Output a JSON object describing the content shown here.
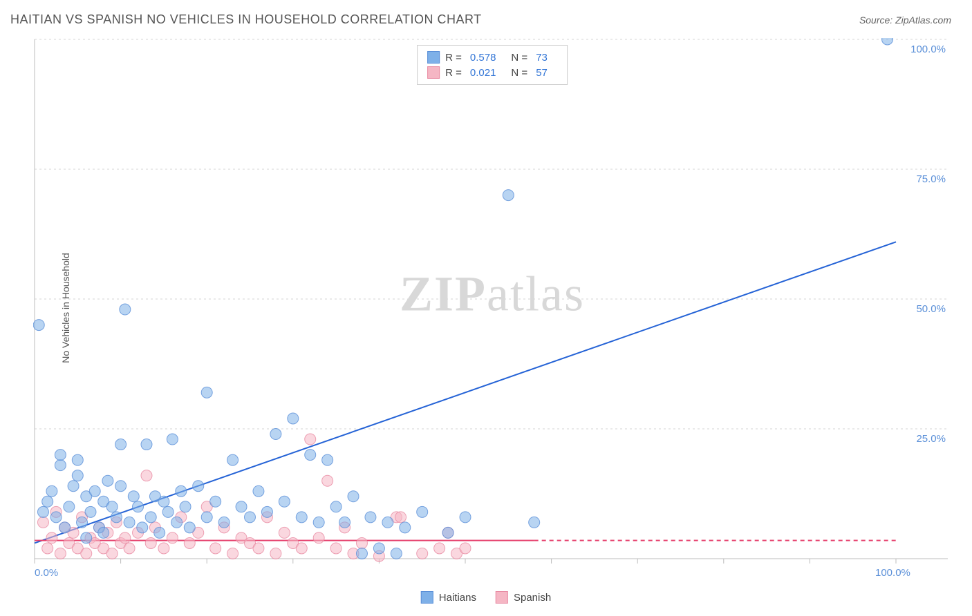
{
  "title": "HAITIAN VS SPANISH NO VEHICLES IN HOUSEHOLD CORRELATION CHART",
  "source_label": "Source: ZipAtlas.com",
  "y_axis_label": "No Vehicles in Household",
  "watermark": {
    "zip": "ZIP",
    "atlas": "atlas"
  },
  "chart": {
    "type": "scatter",
    "background_color": "#ffffff",
    "grid_color": "#d6d6d6",
    "axis_color": "#bcbcbc",
    "xlim": [
      0,
      100
    ],
    "ylim": [
      0,
      100
    ],
    "x_tick_step": 10,
    "y_tick_step": 25,
    "x_tick_labels": {
      "0": "0.0%",
      "100": "100.0%"
    },
    "y_tick_labels": {
      "25": "25.0%",
      "50": "50.0%",
      "75": "75.0%",
      "100": "100.0%"
    },
    "tick_label_color": "#5a8fd8",
    "tick_label_fontsize": 15,
    "marker_radius": 8,
    "marker_opacity": 0.55,
    "line_width": 2,
    "series": [
      {
        "name": "Haitians",
        "color": "#7eb0e8",
        "stroke": "#5a8fd8",
        "line_color": "#2563d6",
        "r_value": "0.578",
        "n_value": "73",
        "trend": {
          "x1": 0,
          "y1": 3,
          "x2": 100,
          "y2": 61,
          "dash_from_x": 100
        },
        "points": [
          [
            0.5,
            45
          ],
          [
            1,
            9
          ],
          [
            1.5,
            11
          ],
          [
            2,
            13
          ],
          [
            2.5,
            8
          ],
          [
            3,
            18
          ],
          [
            3,
            20
          ],
          [
            3.5,
            6
          ],
          [
            4,
            10
          ],
          [
            4.5,
            14
          ],
          [
            5,
            16
          ],
          [
            5,
            19
          ],
          [
            5.5,
            7
          ],
          [
            6,
            12
          ],
          [
            6,
            4
          ],
          [
            6.5,
            9
          ],
          [
            7,
            13
          ],
          [
            7.5,
            6
          ],
          [
            8,
            11
          ],
          [
            8,
            5
          ],
          [
            8.5,
            15
          ],
          [
            9,
            10
          ],
          [
            9.5,
            8
          ],
          [
            10,
            14
          ],
          [
            10,
            22
          ],
          [
            10.5,
            48
          ],
          [
            11,
            7
          ],
          [
            11.5,
            12
          ],
          [
            12,
            10
          ],
          [
            12.5,
            6
          ],
          [
            13,
            22
          ],
          [
            13.5,
            8
          ],
          [
            14,
            12
          ],
          [
            14.5,
            5
          ],
          [
            15,
            11
          ],
          [
            15.5,
            9
          ],
          [
            16,
            23
          ],
          [
            16.5,
            7
          ],
          [
            17,
            13
          ],
          [
            17.5,
            10
          ],
          [
            18,
            6
          ],
          [
            19,
            14
          ],
          [
            20,
            32
          ],
          [
            20,
            8
          ],
          [
            21,
            11
          ],
          [
            22,
            7
          ],
          [
            23,
            19
          ],
          [
            24,
            10
          ],
          [
            25,
            8
          ],
          [
            26,
            13
          ],
          [
            27,
            9
          ],
          [
            28,
            24
          ],
          [
            29,
            11
          ],
          [
            30,
            27
          ],
          [
            31,
            8
          ],
          [
            32,
            20
          ],
          [
            33,
            7
          ],
          [
            34,
            19
          ],
          [
            35,
            10
          ],
          [
            36,
            7
          ],
          [
            37,
            12
          ],
          [
            38,
            1
          ],
          [
            39,
            8
          ],
          [
            40,
            2
          ],
          [
            41,
            7
          ],
          [
            42,
            1
          ],
          [
            43,
            6
          ],
          [
            45,
            9
          ],
          [
            48,
            5
          ],
          [
            50,
            8
          ],
          [
            55,
            70
          ],
          [
            58,
            7
          ],
          [
            99,
            100
          ]
        ]
      },
      {
        "name": "Spanish",
        "color": "#f5b6c4",
        "stroke": "#e88ba3",
        "line_color": "#e53e6b",
        "r_value": "0.021",
        "n_value": "57",
        "trend": {
          "x1": 0,
          "y1": 3.5,
          "x2": 100,
          "y2": 3.5,
          "dash_from_x": 58
        },
        "points": [
          [
            1,
            7
          ],
          [
            1.5,
            2
          ],
          [
            2,
            4
          ],
          [
            2.5,
            9
          ],
          [
            3,
            1
          ],
          [
            3.5,
            6
          ],
          [
            4,
            3
          ],
          [
            4.5,
            5
          ],
          [
            5,
            2
          ],
          [
            5.5,
            8
          ],
          [
            6,
            1
          ],
          [
            6.5,
            4
          ],
          [
            7,
            3
          ],
          [
            7.5,
            6
          ],
          [
            8,
            2
          ],
          [
            8.5,
            5
          ],
          [
            9,
            1
          ],
          [
            9.5,
            7
          ],
          [
            10,
            3
          ],
          [
            10.5,
            4
          ],
          [
            11,
            2
          ],
          [
            12,
            5
          ],
          [
            13,
            16
          ],
          [
            13.5,
            3
          ],
          [
            14,
            6
          ],
          [
            15,
            2
          ],
          [
            16,
            4
          ],
          [
            17,
            8
          ],
          [
            18,
            3
          ],
          [
            19,
            5
          ],
          [
            20,
            10
          ],
          [
            21,
            2
          ],
          [
            22,
            6
          ],
          [
            23,
            1
          ],
          [
            24,
            4
          ],
          [
            25,
            3
          ],
          [
            26,
            2
          ],
          [
            27,
            8
          ],
          [
            28,
            1
          ],
          [
            29,
            5
          ],
          [
            30,
            3
          ],
          [
            31,
            2
          ],
          [
            32,
            23
          ],
          [
            33,
            4
          ],
          [
            34,
            15
          ],
          [
            35,
            2
          ],
          [
            36,
            6
          ],
          [
            37,
            1
          ],
          [
            38,
            3
          ],
          [
            40,
            0.5
          ],
          [
            42,
            8
          ],
          [
            42.5,
            8
          ],
          [
            45,
            1
          ],
          [
            47,
            2
          ],
          [
            48,
            5
          ],
          [
            49,
            1
          ],
          [
            50,
            2
          ]
        ]
      }
    ]
  },
  "legend_top": {
    "r_label": "R =",
    "n_label": "N ="
  },
  "legend_bottom": {
    "items": [
      "Haitians",
      "Spanish"
    ]
  }
}
